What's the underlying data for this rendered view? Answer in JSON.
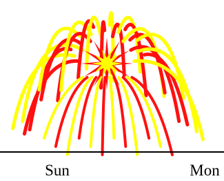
{
  "labels": [
    "Sun",
    "Mon"
  ]
}
